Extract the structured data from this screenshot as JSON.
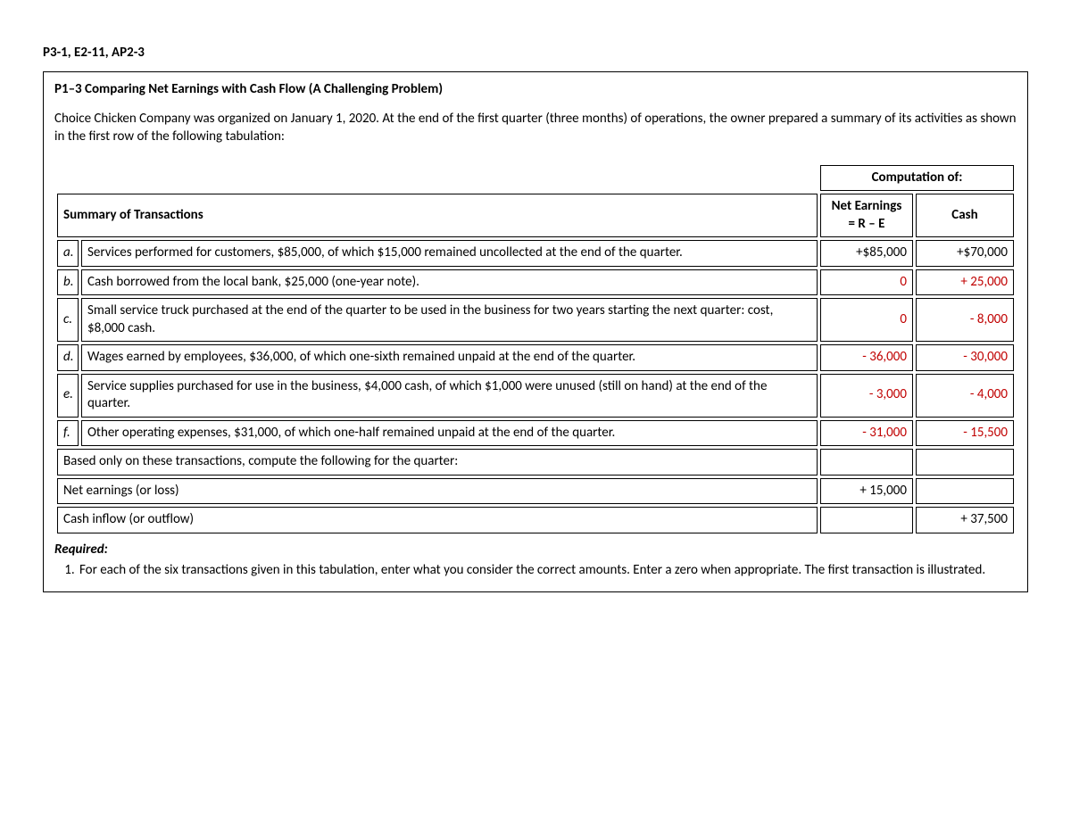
{
  "header": "P3-1, E2-11, AP2-3",
  "problem_title": "P1–3 Comparing Net Earnings with Cash Flow (A Challenging Problem)",
  "intro": "Choice Chicken Company was organized on January 1, 2020. At the end of the first quarter (three months) of operations, the owner prepared a summary of its activities as shown in the first row of the following tabulation:",
  "table": {
    "computation_header": "Computation of:",
    "summary_header": "Summary of Transactions",
    "ne_header_line1": "Net Earnings",
    "ne_header_line2": "= R – E",
    "cash_header": "Cash",
    "rows": [
      {
        "letter": "a.",
        "desc": "Services performed for customers, $85,000, of which $15,000 remained uncollected at the end of the quarter.",
        "ne": "+$85,000",
        "ne_red": false,
        "cash": "+$70,000",
        "cash_red": false
      },
      {
        "letter": "b.",
        "desc": "Cash borrowed from the local bank, $25,000 (one-year note).",
        "ne": "0",
        "ne_red": true,
        "cash": "+ 25,000",
        "cash_red": true
      },
      {
        "letter": "c.",
        "desc": "Small service truck purchased at the end of the quarter to be used in the business for two years starting the next quarter: cost, $8,000 cash.",
        "ne": "0",
        "ne_red": true,
        "cash": "- 8,000",
        "cash_red": true
      },
      {
        "letter": "d.",
        "desc": "Wages earned by employees, $36,000, of which one-sixth remained unpaid at the end of the quarter.",
        "ne": "- 36,000",
        "ne_red": true,
        "cash": "- 30,000",
        "cash_red": true
      },
      {
        "letter": "e.",
        "desc": "Service supplies purchased for use in the business, $4,000 cash, of which $1,000 were unused (still on hand) at the end of the quarter.",
        "ne": "- 3,000",
        "ne_red": true,
        "cash": "- 4,000",
        "cash_red": true
      },
      {
        "letter": "f.",
        "desc": "Other operating expenses, $31,000, of which one-half remained unpaid at the end of the quarter.",
        "ne": "- 31,000",
        "ne_red": true,
        "cash": "- 15,500",
        "cash_red": true
      }
    ],
    "based_on": "Based only on these transactions, compute the following for the quarter:",
    "net_earnings_label": "Net earnings (or loss)",
    "net_earnings_value": "+ 15,000",
    "cash_flow_label": "Cash inflow (or outflow)",
    "cash_flow_value": "+ 37,500"
  },
  "required_label": "Required:",
  "required_items": [
    "For each of the six transactions given in this tabulation, enter what you consider the correct amounts. Enter a zero when appropriate. The first transaction is illustrated."
  ]
}
